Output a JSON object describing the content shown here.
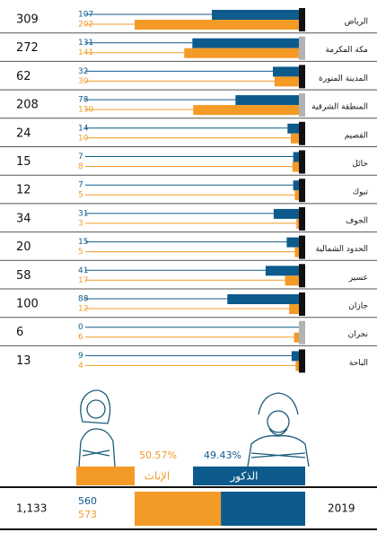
{
  "chart_data": {
    "type": "bar",
    "categories": [
      "الرياض",
      "مكة المكرمة",
      "المدينة المنورة",
      "المنطقة الشرقية",
      "القصيم",
      "حائل",
      "تبوك",
      "الجوف",
      "الحدود الشمالية",
      "عسير",
      "جازان",
      "نجران",
      "الباحة"
    ],
    "totals": [
      309,
      272,
      62,
      208,
      24,
      15,
      12,
      34,
      20,
      58,
      100,
      6,
      13
    ],
    "marker_colors": [
      "#111111",
      "#b3b3b3",
      "#111111",
      "#b3b3b3",
      "#111111",
      "#111111",
      "#111111",
      "#111111",
      "#111111",
      "#111111",
      "#111111",
      "#b3b3b3",
      "#111111"
    ],
    "series": [
      {
        "name": "الذكور",
        "color": "#0d5a8c",
        "values": [
          107,
          131,
          32,
          78,
          14,
          7,
          7,
          31,
          15,
          41,
          88,
          0,
          9
        ]
      },
      {
        "name": "الإناث",
        "color": "#f49a27",
        "values": [
          202,
          141,
          30,
          130,
          10,
          8,
          5,
          3,
          5,
          17,
          12,
          6,
          4
        ]
      }
    ],
    "summary": {
      "year": "2019",
      "total": 1133,
      "total_label": "1,133",
      "values": [
        560,
        573
      ],
      "shares": [
        49.43,
        50.57
      ],
      "share_labels": [
        "49.43%",
        "50.57%"
      ]
    }
  }
}
